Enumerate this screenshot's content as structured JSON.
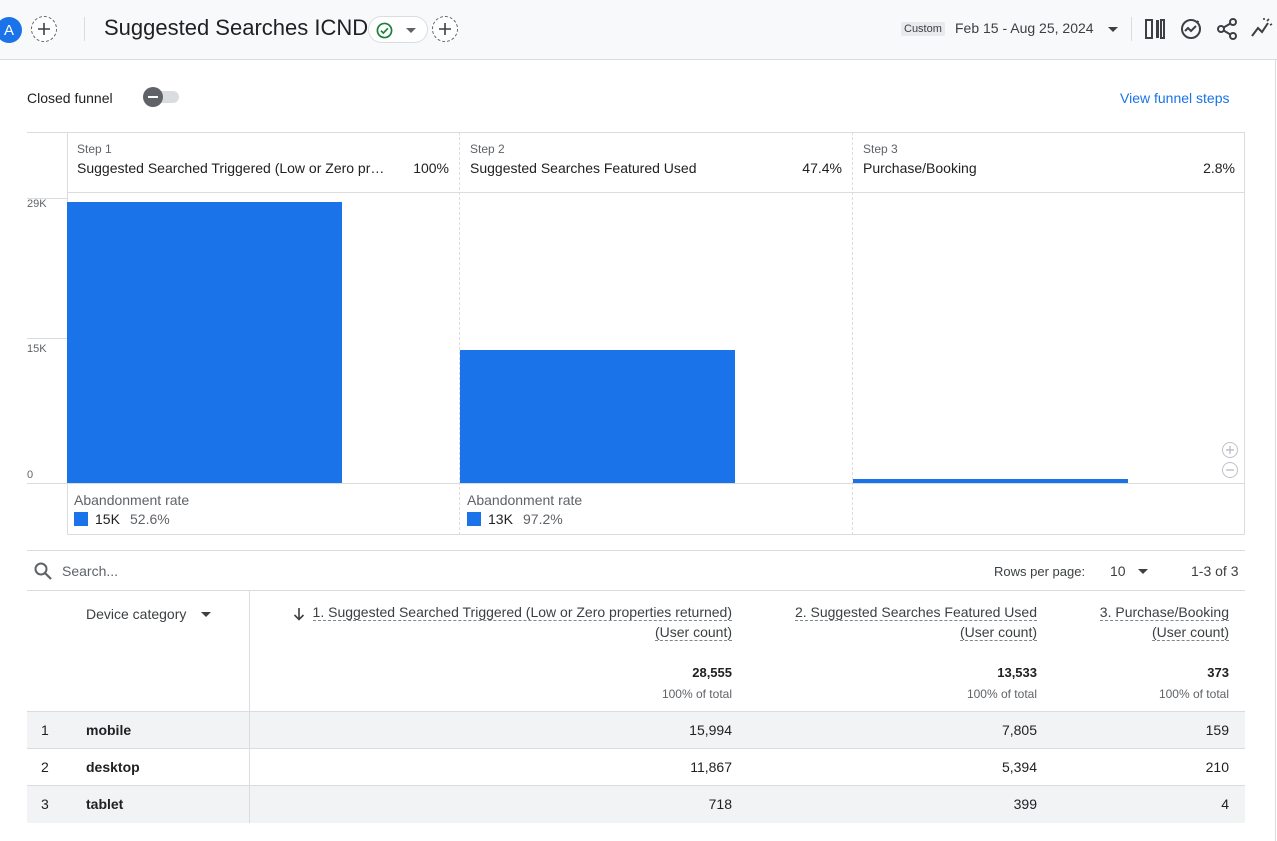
{
  "topbar": {
    "avatar_letter": "A",
    "report_title": "Suggested Searches ICND",
    "date_custom_label": "Custom",
    "date_range": "Feb 15 - Aug 25, 2024",
    "icons": [
      "add-comparison-icon",
      "check-circle-icon",
      "add-icon",
      "compare-icon",
      "insights-icon",
      "share-icon",
      "trend-icon"
    ]
  },
  "funnel": {
    "closed_funnel_label": "Closed funnel",
    "closed_funnel_on": false,
    "view_steps_label": "View funnel steps"
  },
  "chart_data": {
    "type": "bar",
    "y_ticks": [
      "29K",
      "15K",
      "0"
    ],
    "ylim": [
      0,
      29000
    ],
    "steps": [
      {
        "step_label": "Step 1",
        "name": "Suggested Searched Triggered (Low or Zero pro…",
        "pct": "100%",
        "value": 28555,
        "abandonment_label": "Abandonment rate",
        "abandonment_count": "15K",
        "abandonment_rate": "52.6%"
      },
      {
        "step_label": "Step 2",
        "name": "Suggested Searches Featured Used",
        "pct": "47.4%",
        "value": 13533,
        "abandonment_label": "Abandonment rate",
        "abandonment_count": "13K",
        "abandonment_rate": "97.2%"
      },
      {
        "step_label": "Step 3",
        "name": "Purchase/Booking",
        "pct": "2.8%",
        "value": 373
      }
    ],
    "bar_color": "#1a73e8"
  },
  "table": {
    "search_placeholder": "Search...",
    "rows_per_page_label": "Rows per page:",
    "rows_per_page_value": "10",
    "pager_text": "1-3 of 3",
    "dimension_header": "Device category",
    "metric_headers": [
      {
        "line1": "1. Suggested Searched Triggered (Low or Zero properties returned)",
        "line2": "(User count)"
      },
      {
        "line1": "2. Suggested Searches Featured Used",
        "line2": "(User count)"
      },
      {
        "line1": "3. Purchase/Booking",
        "line2": "(User count)"
      }
    ],
    "totals": [
      "28,555",
      "13,533",
      "373"
    ],
    "totals_sub": [
      "100% of total",
      "100% of total",
      "100% of total"
    ],
    "rows": [
      {
        "idx": "1",
        "device": "mobile",
        "values": [
          "15,994",
          "7,805",
          "159"
        ]
      },
      {
        "idx": "2",
        "device": "desktop",
        "values": [
          "11,867",
          "5,394",
          "210"
        ]
      },
      {
        "idx": "3",
        "device": "tablet",
        "values": [
          "718",
          "399",
          "4"
        ]
      }
    ]
  }
}
